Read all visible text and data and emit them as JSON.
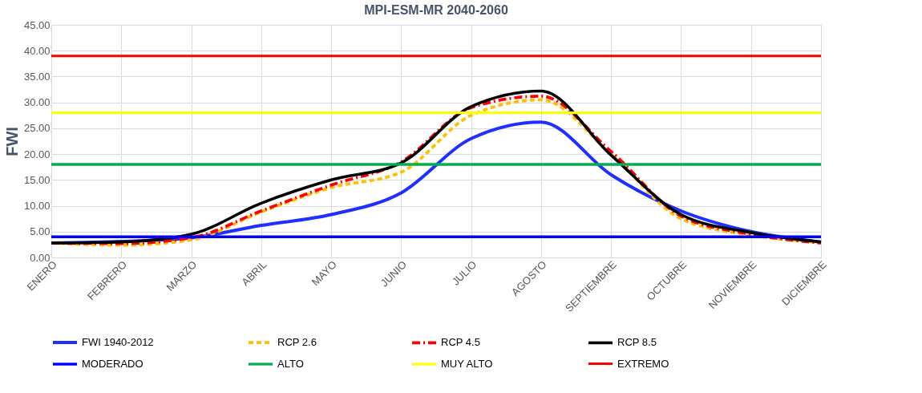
{
  "chart_data": {
    "type": "line",
    "title": "MPI-ESM-MR 2040-2060",
    "ylabel": "FWI",
    "categories": [
      "ENERO",
      "FEBRERO",
      "MARZO",
      "ABRIL",
      "MAYO",
      "JUNIO",
      "JULIO",
      "AGOSTO",
      "SEPTIEMBRE",
      "OCTUBRE",
      "NOVIEMBRE",
      "DICIEMBRE"
    ],
    "series": [
      {
        "name": "FWI 1940-2012",
        "color": "#1f2fff",
        "line_style": "solid",
        "values": [
          2.8,
          3.1,
          3.8,
          6.2,
          8.3,
          12.5,
          23,
          26.2,
          16,
          9,
          5,
          3.0
        ]
      },
      {
        "name": "RCP 2.6",
        "color": "#ffc000",
        "line_style": "dashed",
        "values": [
          2.8,
          2.4,
          3.4,
          8.8,
          13.5,
          16.5,
          27.5,
          30.5,
          20,
          7.5,
          4.3,
          2.9
        ]
      },
      {
        "name": "RCP 4.5",
        "color": "#ff0000",
        "line_style": "dashdot",
        "values": [
          2.8,
          2.7,
          3.8,
          9,
          14,
          18.5,
          29,
          31.2,
          20.5,
          8,
          4.5,
          2.8
        ]
      },
      {
        "name": "RCP 8.5",
        "color": "#000000",
        "line_style": "solid",
        "values": [
          2.8,
          3.0,
          4.5,
          10.5,
          15,
          18.3,
          29.2,
          32.2,
          19.8,
          8.3,
          4.8,
          3.0
        ]
      }
    ],
    "ref_lines": [
      {
        "axis": "y",
        "value": 4,
        "label": "MODERADO",
        "color": "#0000ff"
      },
      {
        "axis": "y",
        "value": 18,
        "label": "ALTO",
        "color": "#00b050"
      },
      {
        "axis": "y",
        "value": 28,
        "label": "MUY ALTO",
        "color": "#ffff00"
      },
      {
        "axis": "y",
        "value": 39,
        "label": "EXTREMO",
        "color": "#ff0000"
      }
    ],
    "ylim": [
      0,
      45
    ],
    "yticks": [
      {
        "value": 0,
        "label": "0.00"
      },
      {
        "value": 5,
        "label": "5.00"
      },
      {
        "value": 10,
        "label": "10.00"
      },
      {
        "value": 15,
        "label": "15.00"
      },
      {
        "value": 20,
        "label": "20.00"
      },
      {
        "value": 25,
        "label": "25.00"
      },
      {
        "value": 30,
        "label": "30.00"
      },
      {
        "value": 35,
        "label": "35.00"
      },
      {
        "value": 40,
        "label": "40.00"
      },
      {
        "value": 45,
        "label": "45.00"
      }
    ],
    "grid": true,
    "legend": "bottom",
    "marker": "none"
  }
}
